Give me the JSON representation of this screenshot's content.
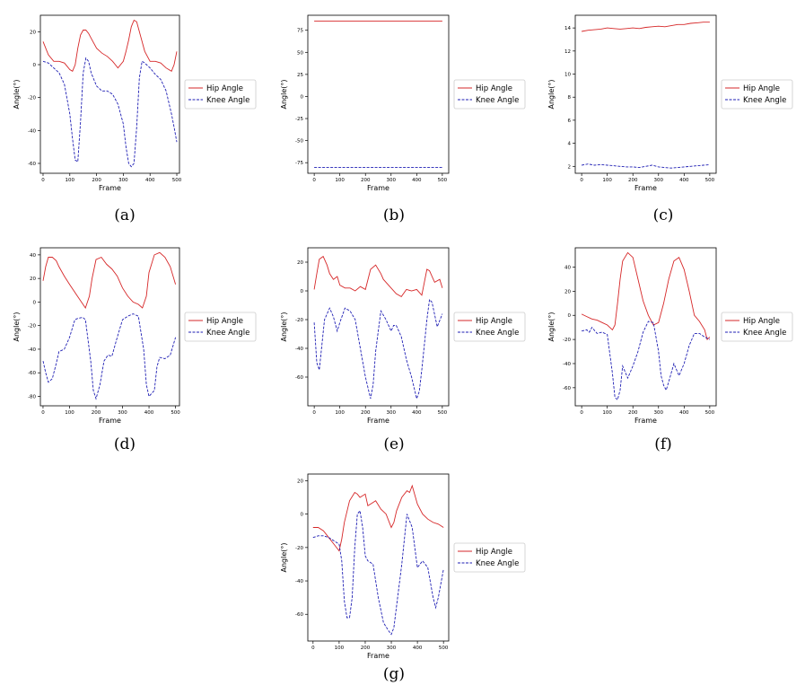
{
  "figure": {
    "captions": [
      "(a)",
      "(b)",
      "(c)",
      "(d)",
      "(e)",
      "(f)",
      "(g)"
    ]
  },
  "colors": {
    "hip": "#d62728",
    "knee": "#1f1fb4"
  },
  "chart_data": [
    {
      "id": "a",
      "type": "line",
      "caption": "(a)",
      "xlabel": "Frame",
      "ylabel": "Angle(°)",
      "xlim": [
        -10,
        510
      ],
      "ylim": [
        -66,
        30
      ],
      "xticks": [
        0,
        100,
        200,
        300,
        400,
        500
      ],
      "yticks": [
        -60,
        -40,
        -20,
        0,
        20
      ],
      "legend": "right-outside",
      "grid": false,
      "series": [
        {
          "name": "Hip Angle",
          "style": "solid",
          "x": [
            0,
            20,
            40,
            60,
            80,
            100,
            110,
            120,
            130,
            140,
            150,
            160,
            170,
            180,
            200,
            220,
            240,
            260,
            280,
            300,
            310,
            320,
            330,
            340,
            350,
            360,
            370,
            380,
            400,
            420,
            440,
            460,
            480,
            490,
            500
          ],
          "y": [
            14,
            6,
            2,
            2,
            1,
            -3,
            -4,
            0,
            10,
            18,
            21,
            21,
            19,
            16,
            10,
            7,
            5,
            2,
            -2,
            2,
            8,
            15,
            23,
            27,
            26,
            20,
            14,
            8,
            2,
            2,
            1,
            -2,
            -4,
            0,
            8
          ]
        },
        {
          "name": "Knee Angle",
          "style": "dashed",
          "x": [
            0,
            20,
            40,
            60,
            80,
            100,
            110,
            120,
            130,
            140,
            150,
            160,
            170,
            180,
            200,
            220,
            240,
            260,
            280,
            300,
            310,
            320,
            330,
            340,
            350,
            360,
            370,
            380,
            400,
            420,
            440,
            460,
            480,
            490,
            500
          ],
          "y": [
            2,
            1,
            -2,
            -5,
            -12,
            -30,
            -45,
            -58,
            -59,
            -35,
            -5,
            4,
            2,
            -5,
            -13,
            -16,
            -16,
            -18,
            -24,
            -36,
            -50,
            -60,
            -62,
            -60,
            -38,
            -8,
            2,
            1,
            -2,
            -6,
            -9,
            -16,
            -30,
            -38,
            -47
          ]
        }
      ]
    },
    {
      "id": "b",
      "type": "line",
      "caption": "(b)",
      "xlabel": "Frame",
      "ylabel": "Angle(°)",
      "xlim": [
        -25,
        525
      ],
      "ylim": [
        -87,
        92
      ],
      "xticks": [
        0,
        100,
        200,
        300,
        400,
        500
      ],
      "yticks": [
        -75,
        -50,
        -25,
        0,
        25,
        50,
        75
      ],
      "legend": "right-outside",
      "grid": false,
      "series": [
        {
          "name": "Hip Angle",
          "style": "solid",
          "x": [
            0,
            500
          ],
          "y": [
            85.5,
            85.5
          ]
        },
        {
          "name": "Knee Angle",
          "style": "dashed",
          "x": [
            0,
            500
          ],
          "y": [
            -80.5,
            -80.5
          ]
        }
      ]
    },
    {
      "id": "c",
      "type": "line",
      "caption": "(c)",
      "xlabel": "Frame",
      "ylabel": "Angle(°)",
      "xlim": [
        -25,
        525
      ],
      "ylim": [
        1.4,
        15.1
      ],
      "xticks": [
        0,
        100,
        200,
        300,
        400,
        500
      ],
      "yticks": [
        2,
        4,
        6,
        8,
        10,
        12,
        14
      ],
      "legend": "right-outside",
      "grid": false,
      "series": [
        {
          "name": "Hip Angle",
          "style": "solid",
          "x": [
            0,
            25,
            50,
            75,
            100,
            125,
            150,
            175,
            200,
            225,
            250,
            275,
            300,
            325,
            350,
            375,
            400,
            425,
            450,
            475,
            500
          ],
          "y": [
            13.7,
            13.8,
            13.85,
            13.9,
            14.0,
            13.95,
            13.9,
            13.95,
            14.0,
            13.95,
            14.05,
            14.1,
            14.15,
            14.1,
            14.2,
            14.3,
            14.3,
            14.4,
            14.45,
            14.5,
            14.5
          ]
        },
        {
          "name": "Knee Angle",
          "style": "dashed",
          "x": [
            0,
            25,
            50,
            75,
            100,
            125,
            150,
            175,
            200,
            225,
            250,
            275,
            300,
            325,
            350,
            375,
            400,
            425,
            450,
            475,
            500
          ],
          "y": [
            2.1,
            2.2,
            2.1,
            2.15,
            2.1,
            2.05,
            2.0,
            1.95,
            1.95,
            1.9,
            2.0,
            2.1,
            1.95,
            1.9,
            1.85,
            1.9,
            1.95,
            2.0,
            2.05,
            2.1,
            2.15
          ]
        }
      ]
    },
    {
      "id": "d",
      "type": "line",
      "caption": "(d)",
      "xlabel": "Frame",
      "ylabel": "Angle(°)",
      "xlim": [
        -10,
        515
      ],
      "ylim": [
        -88,
        46
      ],
      "xticks": [
        0,
        100,
        200,
        300,
        400,
        500
      ],
      "yticks": [
        -80,
        -60,
        -40,
        -20,
        0,
        20,
        40
      ],
      "legend": "right-outside",
      "grid": false,
      "series": [
        {
          "name": "Hip Angle",
          "style": "solid",
          "x": [
            0,
            10,
            20,
            35,
            50,
            60,
            80,
            100,
            130,
            160,
            175,
            185,
            200,
            220,
            240,
            260,
            280,
            300,
            320,
            340,
            360,
            375,
            390,
            400,
            420,
            440,
            460,
            480,
            500
          ],
          "y": [
            18,
            30,
            38,
            38,
            35,
            30,
            22,
            15,
            5,
            -5,
            5,
            20,
            36,
            38,
            32,
            28,
            22,
            12,
            5,
            0,
            -2,
            -5,
            5,
            25,
            40,
            42,
            38,
            30,
            15
          ]
        },
        {
          "name": "Knee Angle",
          "style": "dashed",
          "x": [
            0,
            10,
            20,
            35,
            50,
            60,
            80,
            100,
            120,
            130,
            150,
            160,
            180,
            190,
            200,
            215,
            230,
            245,
            260,
            280,
            300,
            320,
            340,
            360,
            380,
            390,
            400,
            420,
            430,
            440,
            460,
            480,
            500
          ],
          "y": [
            -50,
            -60,
            -68,
            -65,
            -52,
            -42,
            -40,
            -30,
            -15,
            -14,
            -13,
            -15,
            -50,
            -75,
            -82,
            -70,
            -50,
            -45,
            -46,
            -30,
            -15,
            -12,
            -10,
            -12,
            -40,
            -70,
            -80,
            -75,
            -55,
            -47,
            -48,
            -45,
            -30
          ]
        }
      ]
    },
    {
      "id": "e",
      "type": "line",
      "caption": "(e)",
      "xlabel": "Frame",
      "ylabel": "Angle(°)",
      "xlim": [
        -25,
        525
      ],
      "ylim": [
        -80,
        30
      ],
      "xticks": [
        0,
        100,
        200,
        300,
        400,
        500
      ],
      "yticks": [
        -60,
        -40,
        -20,
        0,
        20
      ],
      "legend": "right-outside",
      "grid": false,
      "series": [
        {
          "name": "Hip Angle",
          "style": "solid",
          "x": [
            0,
            10,
            20,
            35,
            50,
            60,
            75,
            90,
            100,
            120,
            140,
            160,
            180,
            200,
            220,
            240,
            260,
            270,
            280,
            300,
            320,
            340,
            360,
            380,
            400,
            420,
            440,
            450,
            470,
            490,
            500
          ],
          "y": [
            1,
            12,
            22,
            24,
            18,
            12,
            8,
            10,
            4,
            2,
            2,
            0,
            3,
            1,
            15,
            18,
            12,
            8,
            6,
            2,
            -2,
            -4,
            1,
            0,
            1,
            -3,
            15,
            14,
            6,
            8,
            2
          ]
        },
        {
          "name": "Knee Angle",
          "style": "dashed",
          "x": [
            0,
            10,
            20,
            40,
            60,
            75,
            90,
            100,
            120,
            140,
            160,
            180,
            200,
            220,
            230,
            240,
            260,
            280,
            300,
            310,
            320,
            340,
            360,
            380,
            400,
            410,
            420,
            440,
            450,
            460,
            480,
            500
          ],
          "y": [
            -22,
            -50,
            -55,
            -20,
            -12,
            -18,
            -28,
            -22,
            -12,
            -14,
            -20,
            -40,
            -60,
            -75,
            -65,
            -42,
            -14,
            -20,
            -28,
            -24,
            -24,
            -32,
            -48,
            -60,
            -75,
            -70,
            -55,
            -20,
            -6,
            -8,
            -25,
            -16
          ]
        }
      ]
    },
    {
      "id": "f",
      "type": "line",
      "caption": "(f)",
      "xlabel": "Frame",
      "ylabel": "Angle(°)",
      "xlim": [
        -25,
        525
      ],
      "ylim": [
        -75,
        56
      ],
      "xticks": [
        0,
        100,
        200,
        300,
        400,
        500
      ],
      "yticks": [
        -60,
        -40,
        -20,
        0,
        20,
        40
      ],
      "legend": "right-outside",
      "grid": false,
      "series": [
        {
          "name": "Hip Angle",
          "style": "solid",
          "x": [
            0,
            20,
            40,
            60,
            80,
            100,
            120,
            130,
            140,
            150,
            160,
            180,
            200,
            220,
            240,
            260,
            280,
            300,
            320,
            340,
            360,
            380,
            400,
            420,
            440,
            460,
            480,
            490,
            500
          ],
          "y": [
            1,
            -1,
            -3,
            -4,
            -6,
            -8,
            -12,
            -8,
            10,
            30,
            45,
            52,
            48,
            30,
            12,
            0,
            -8,
            -6,
            10,
            30,
            45,
            48,
            38,
            20,
            0,
            -5,
            -12,
            -20,
            -18
          ]
        },
        {
          "name": "Knee Angle",
          "style": "dashed",
          "x": [
            0,
            20,
            30,
            40,
            60,
            80,
            100,
            120,
            130,
            140,
            150,
            160,
            180,
            200,
            220,
            240,
            260,
            280,
            300,
            310,
            320,
            330,
            340,
            360,
            380,
            400,
            420,
            440,
            460,
            480,
            500
          ],
          "y": [
            -13,
            -12,
            -14,
            -10,
            -15,
            -14,
            -16,
            -48,
            -68,
            -70,
            -62,
            -42,
            -52,
            -42,
            -30,
            -14,
            -5,
            -6,
            -30,
            -50,
            -58,
            -62,
            -55,
            -40,
            -50,
            -40,
            -25,
            -15,
            -15,
            -18,
            -20
          ]
        }
      ]
    },
    {
      "id": "g",
      "type": "line",
      "caption": "(g)",
      "xlabel": "Frame",
      "ylabel": "Angle(°)",
      "xlim": [
        -20,
        520
      ],
      "ylim": [
        -76,
        24
      ],
      "xticks": [
        0,
        100,
        200,
        300,
        400,
        500
      ],
      "yticks": [
        -60,
        -40,
        -20,
        0,
        20
      ],
      "legend": "right-outside",
      "grid": false,
      "series": [
        {
          "name": "Hip Angle",
          "style": "solid",
          "x": [
            0,
            20,
            40,
            60,
            80,
            100,
            110,
            120,
            140,
            160,
            170,
            180,
            200,
            210,
            220,
            240,
            260,
            280,
            300,
            310,
            320,
            340,
            360,
            370,
            380,
            400,
            420,
            440,
            460,
            480,
            500
          ],
          "y": [
            -8,
            -8,
            -10,
            -14,
            -18,
            -22,
            -15,
            -5,
            8,
            13,
            12,
            10,
            12,
            5,
            6,
            8,
            3,
            0,
            -8,
            -5,
            2,
            10,
            14,
            13,
            17,
            6,
            0,
            -3,
            -5,
            -6,
            -8
          ]
        },
        {
          "name": "Knee Angle",
          "style": "dashed",
          "x": [
            0,
            20,
            40,
            60,
            80,
            100,
            110,
            120,
            130,
            140,
            150,
            160,
            170,
            180,
            190,
            200,
            210,
            230,
            250,
            270,
            290,
            300,
            310,
            320,
            340,
            360,
            380,
            400,
            420,
            440,
            460,
            470,
            480,
            500
          ],
          "y": [
            -14,
            -13,
            -13,
            -14,
            -16,
            -18,
            -28,
            -52,
            -62,
            -62,
            -50,
            -20,
            0,
            2,
            -8,
            -25,
            -28,
            -30,
            -50,
            -65,
            -70,
            -72,
            -68,
            -55,
            -30,
            0,
            -8,
            -32,
            -28,
            -32,
            -50,
            -56,
            -50,
            -33
          ]
        }
      ]
    }
  ]
}
